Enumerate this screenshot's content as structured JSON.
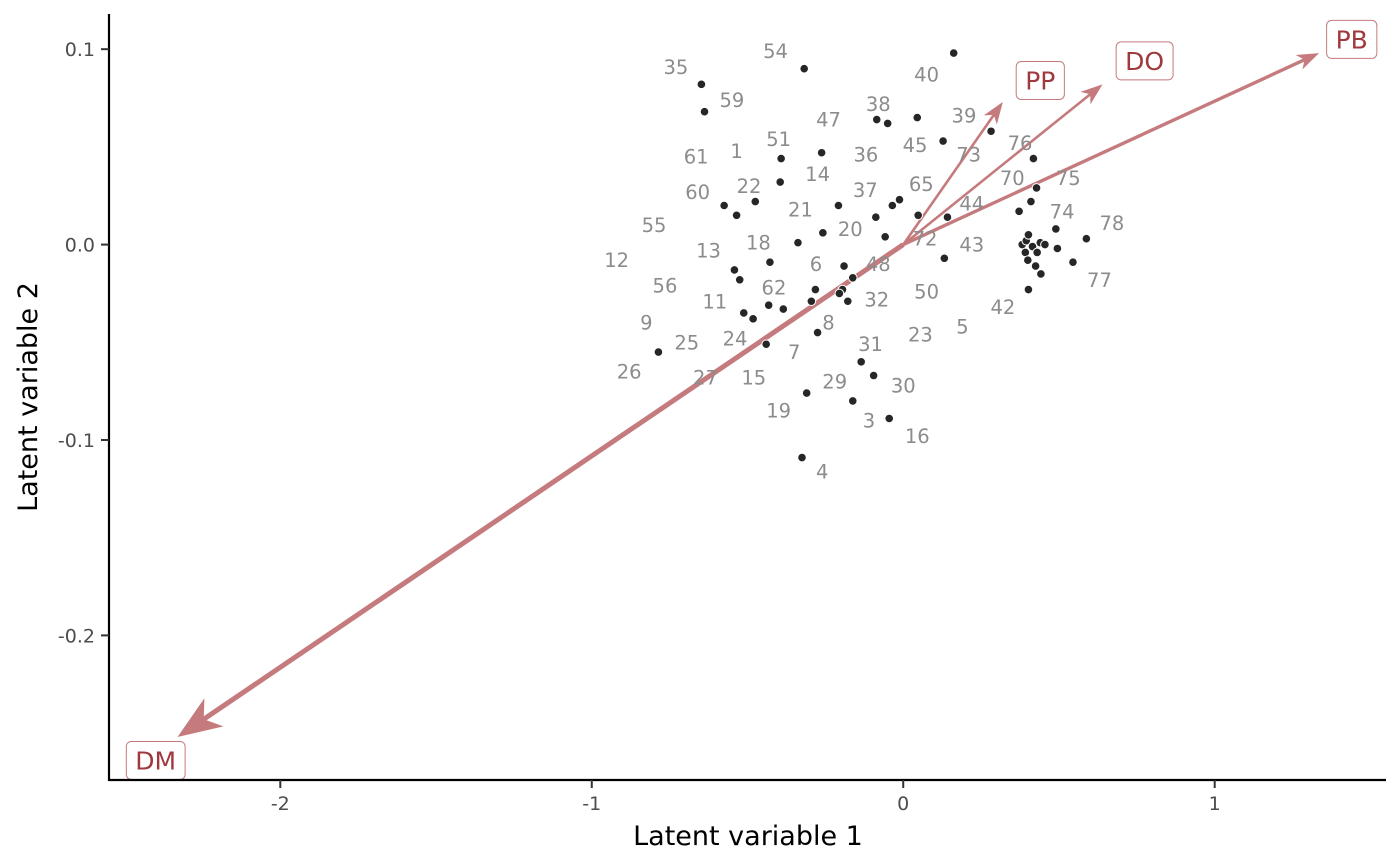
{
  "chart_data": {
    "type": "scatter",
    "title": "",
    "xlabel": "Latent variable 1",
    "ylabel": "Latent variable 2",
    "xlim": [
      -2.55,
      1.55
    ],
    "ylim": [
      -0.274,
      0.118
    ],
    "x_ticks": [
      -2,
      -1,
      0,
      1
    ],
    "x_tick_labels": [
      "-2",
      "-1",
      "0",
      "1"
    ],
    "y_ticks": [
      0.1,
      0.0,
      -0.1,
      -0.2
    ],
    "y_tick_labels": [
      "0.1",
      "0.0",
      "-0.1",
      "-0.2"
    ],
    "grid": false,
    "legend": "none",
    "colors": {
      "point": "#262626",
      "point_label": "#8c8c8c",
      "arrow": "#c57b7d",
      "arrow_label": "#a0393e",
      "axis": "#000000",
      "tick_label": "#4d4d4d"
    },
    "points": [
      {
        "x": -0.648,
        "y": 0.082
      },
      {
        "x": -0.638,
        "y": 0.068
      },
      {
        "x": -0.318,
        "y": 0.09
      },
      {
        "x": 0.162,
        "y": 0.098
      },
      {
        "x": -0.085,
        "y": 0.064
      },
      {
        "x": -0.05,
        "y": 0.062
      },
      {
        "x": 0.045,
        "y": 0.065
      },
      {
        "x": 0.282,
        "y": 0.058
      },
      {
        "x": 0.128,
        "y": 0.053
      },
      {
        "x": -0.262,
        "y": 0.047
      },
      {
        "x": -0.392,
        "y": 0.044
      },
      {
        "x": 0.418,
        "y": 0.044
      },
      {
        "x": -0.395,
        "y": 0.032
      },
      {
        "x": 0.428,
        "y": 0.029
      },
      {
        "x": -0.012,
        "y": 0.023
      },
      {
        "x": 0.41,
        "y": 0.022
      },
      {
        "x": -0.475,
        "y": 0.022
      },
      {
        "x": -0.208,
        "y": 0.02
      },
      {
        "x": -0.575,
        "y": 0.02
      },
      {
        "x": -0.035,
        "y": 0.02
      },
      {
        "x": 0.372,
        "y": 0.017
      },
      {
        "x": -0.535,
        "y": 0.015
      },
      {
        "x": 0.048,
        "y": 0.015
      },
      {
        "x": -0.088,
        "y": 0.014
      },
      {
        "x": 0.142,
        "y": 0.014
      },
      {
        "x": 0.49,
        "y": 0.008
      },
      {
        "x": -0.258,
        "y": 0.006
      },
      {
        "x": 0.588,
        "y": 0.003
      },
      {
        "x": -0.058,
        "y": 0.004
      },
      {
        "x": -0.338,
        "y": 0.001
      },
      {
        "x": 0.382,
        "y": 0.0
      },
      {
        "x": 0.395,
        "y": 0.002
      },
      {
        "x": 0.415,
        "y": -0.001
      },
      {
        "x": 0.44,
        "y": 0.001
      },
      {
        "x": 0.455,
        "y": 0.0
      },
      {
        "x": 0.402,
        "y": 0.005
      },
      {
        "x": 0.392,
        "y": -0.004
      },
      {
        "x": 0.43,
        "y": -0.004
      },
      {
        "x": 0.4,
        "y": -0.008
      },
      {
        "x": 0.495,
        "y": -0.002
      },
      {
        "x": 0.545,
        "y": -0.009
      },
      {
        "x": 0.425,
        "y": -0.011
      },
      {
        "x": 0.442,
        "y": -0.015
      },
      {
        "x": 0.402,
        "y": -0.023
      },
      {
        "x": 0.132,
        "y": -0.007
      },
      {
        "x": -0.19,
        "y": -0.011
      },
      {
        "x": -0.428,
        "y": -0.009
      },
      {
        "x": -0.542,
        "y": -0.013
      },
      {
        "x": -0.525,
        "y": -0.018
      },
      {
        "x": -0.162,
        "y": -0.017
      },
      {
        "x": -0.282,
        "y": -0.023
      },
      {
        "x": -0.195,
        "y": -0.023
      },
      {
        "x": -0.205,
        "y": -0.025
      },
      {
        "x": -0.178,
        "y": -0.029
      },
      {
        "x": -0.295,
        "y": -0.029
      },
      {
        "x": -0.432,
        "y": -0.031
      },
      {
        "x": -0.385,
        "y": -0.033
      },
      {
        "x": -0.512,
        "y": -0.035
      },
      {
        "x": -0.482,
        "y": -0.038
      },
      {
        "x": -0.275,
        "y": -0.045
      },
      {
        "x": -0.44,
        "y": -0.051
      },
      {
        "x": -0.786,
        "y": -0.055
      },
      {
        "x": -0.135,
        "y": -0.06
      },
      {
        "x": -0.095,
        "y": -0.067
      },
      {
        "x": -0.31,
        "y": -0.076
      },
      {
        "x": -0.162,
        "y": -0.08
      },
      {
        "x": -0.045,
        "y": -0.089
      },
      {
        "x": -0.325,
        "y": -0.109
      }
    ],
    "point_labels": [
      {
        "text": "35",
        "x": -0.73,
        "y": 0.091
      },
      {
        "text": "54",
        "x": -0.41,
        "y": 0.099
      },
      {
        "text": "40",
        "x": 0.075,
        "y": 0.087
      },
      {
        "text": "59",
        "x": -0.55,
        "y": 0.074
      },
      {
        "text": "38",
        "x": -0.08,
        "y": 0.072
      },
      {
        "text": "39",
        "x": 0.195,
        "y": 0.066
      },
      {
        "text": "47",
        "x": -0.24,
        "y": 0.064
      },
      {
        "text": "76",
        "x": 0.375,
        "y": 0.052
      },
      {
        "text": "51",
        "x": -0.4,
        "y": 0.054
      },
      {
        "text": "45",
        "x": 0.038,
        "y": 0.051
      },
      {
        "text": "73",
        "x": 0.21,
        "y": 0.046
      },
      {
        "text": "1",
        "x": -0.535,
        "y": 0.048
      },
      {
        "text": "36",
        "x": -0.12,
        "y": 0.046
      },
      {
        "text": "61",
        "x": -0.665,
        "y": 0.045
      },
      {
        "text": "14",
        "x": -0.275,
        "y": 0.036
      },
      {
        "text": "70",
        "x": 0.35,
        "y": 0.034
      },
      {
        "text": "75",
        "x": 0.53,
        "y": 0.034
      },
      {
        "text": "65",
        "x": 0.058,
        "y": 0.031
      },
      {
        "text": "22",
        "x": -0.495,
        "y": 0.03
      },
      {
        "text": "37",
        "x": -0.122,
        "y": 0.028
      },
      {
        "text": "60",
        "x": -0.66,
        "y": 0.027
      },
      {
        "text": "44",
        "x": 0.22,
        "y": 0.021
      },
      {
        "text": "74",
        "x": 0.51,
        "y": 0.017
      },
      {
        "text": "21",
        "x": -0.33,
        "y": 0.018
      },
      {
        "text": "78",
        "x": 0.67,
        "y": 0.011
      },
      {
        "text": "55",
        "x": -0.8,
        "y": 0.01
      },
      {
        "text": "20",
        "x": -0.17,
        "y": 0.008
      },
      {
        "text": "72",
        "x": 0.07,
        "y": 0.003
      },
      {
        "text": "18",
        "x": -0.465,
        "y": 0.001
      },
      {
        "text": "43",
        "x": 0.22,
        "y": 0.0
      },
      {
        "text": "13",
        "x": -0.625,
        "y": -0.003
      },
      {
        "text": "12",
        "x": -0.92,
        "y": -0.008
      },
      {
        "text": "6",
        "x": -0.28,
        "y": -0.01
      },
      {
        "text": "48",
        "x": -0.08,
        "y": -0.01
      },
      {
        "text": "77",
        "x": 0.63,
        "y": -0.018
      },
      {
        "text": "56",
        "x": -0.765,
        "y": -0.021
      },
      {
        "text": "62",
        "x": -0.415,
        "y": -0.022
      },
      {
        "text": "50",
        "x": 0.075,
        "y": -0.024
      },
      {
        "text": "11",
        "x": -0.605,
        "y": -0.029
      },
      {
        "text": "32",
        "x": -0.085,
        "y": -0.028
      },
      {
        "text": "42",
        "x": 0.32,
        "y": -0.032
      },
      {
        "text": "9",
        "x": -0.825,
        "y": -0.04
      },
      {
        "text": "8",
        "x": -0.24,
        "y": -0.04
      },
      {
        "text": "5",
        "x": 0.19,
        "y": -0.042
      },
      {
        "text": "23",
        "x": 0.055,
        "y": -0.046
      },
      {
        "text": "24",
        "x": -0.54,
        "y": -0.048
      },
      {
        "text": "25",
        "x": -0.695,
        "y": -0.05
      },
      {
        "text": "31",
        "x": -0.105,
        "y": -0.051
      },
      {
        "text": "7",
        "x": -0.35,
        "y": -0.055
      },
      {
        "text": "26",
        "x": -0.88,
        "y": -0.065
      },
      {
        "text": "27",
        "x": -0.635,
        "y": -0.068
      },
      {
        "text": "15",
        "x": -0.48,
        "y": -0.068
      },
      {
        "text": "29",
        "x": -0.22,
        "y": -0.07
      },
      {
        "text": "30",
        "x": 0.0,
        "y": -0.072
      },
      {
        "text": "19",
        "x": -0.4,
        "y": -0.085
      },
      {
        "text": "3",
        "x": -0.11,
        "y": -0.09
      },
      {
        "text": "16",
        "x": 0.045,
        "y": -0.098
      },
      {
        "text": "4",
        "x": -0.26,
        "y": -0.116
      }
    ],
    "arrows": [
      {
        "name": "DM",
        "x": -2.33,
        "y": -0.252,
        "label_x": -2.4,
        "label_y": -0.264
      },
      {
        "name": "PB",
        "x": 1.335,
        "y": 0.098,
        "label_x": 1.44,
        "label_y": 0.105
      },
      {
        "name": "DO",
        "x": 0.64,
        "y": 0.082,
        "label_x": 0.775,
        "label_y": 0.094
      },
      {
        "name": "PP",
        "x": 0.32,
        "y": 0.073,
        "label_x": 0.44,
        "label_y": 0.084
      }
    ]
  }
}
